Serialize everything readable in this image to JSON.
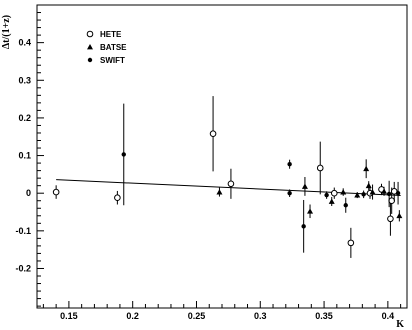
{
  "chart_data": {
    "type": "scatter",
    "title": "",
    "xlabel": "K",
    "ylabel": "Δt/(1+z)",
    "xlim": [
      0.125,
      0.415
    ],
    "ylim": [
      -0.305,
      0.5
    ],
    "xticks": [
      0.15,
      0.2,
      0.25,
      0.3,
      0.35,
      0.4
    ],
    "xtick_labels": [
      "0.15",
      "0.2",
      "0.25",
      "0.3",
      "0.35",
      "0.4"
    ],
    "yticks": [
      -0.2,
      -0.1,
      0,
      0.1,
      0.2,
      0.3,
      0.4
    ],
    "ytick_labels": [
      "-0.2",
      "-0.1",
      "0",
      "0.1",
      "0.2",
      "0.3",
      "0.4"
    ],
    "grid": false,
    "legend_position": "top-left",
    "series": [
      {
        "name": "HETE",
        "marker": "open-circle",
        "points": [
          {
            "x": 0.14,
            "y": 0.003,
            "err": 0.018
          },
          {
            "x": 0.188,
            "y": -0.012,
            "err": 0.018
          },
          {
            "x": 0.263,
            "y": 0.158,
            "err": 0.1
          },
          {
            "x": 0.277,
            "y": 0.025,
            "err": 0.04
          },
          {
            "x": 0.347,
            "y": 0.067,
            "err": 0.07
          },
          {
            "x": 0.358,
            "y": 0.0,
            "err": 0.015
          },
          {
            "x": 0.371,
            "y": -0.132,
            "err": 0.04
          },
          {
            "x": 0.386,
            "y": 0.0,
            "err": 0.015
          },
          {
            "x": 0.395,
            "y": 0.01,
            "err": 0.015
          },
          {
            "x": 0.402,
            "y": -0.068,
            "err": 0.045
          },
          {
            "x": 0.403,
            "y": -0.02,
            "err": 0.035
          },
          {
            "x": 0.405,
            "y": 0.005,
            "err": 0.025
          }
        ]
      },
      {
        "name": "BATSE",
        "marker": "filled-triangle",
        "points": [
          {
            "x": 0.268,
            "y": 0.003,
            "err": 0.012
          },
          {
            "x": 0.335,
            "y": 0.018,
            "err": 0.025
          },
          {
            "x": 0.339,
            "y": -0.048,
            "err": 0.018
          },
          {
            "x": 0.356,
            "y": -0.022,
            "err": 0.012
          },
          {
            "x": 0.365,
            "y": 0.003,
            "err": 0.01
          },
          {
            "x": 0.376,
            "y": -0.005,
            "err": 0.008
          },
          {
            "x": 0.383,
            "y": 0.065,
            "err": 0.025
          },
          {
            "x": 0.385,
            "y": 0.02,
            "err": 0.012
          },
          {
            "x": 0.388,
            "y": 0.003,
            "err": 0.02
          },
          {
            "x": 0.397,
            "y": 0.005,
            "err": 0.012
          },
          {
            "x": 0.409,
            "y": -0.06,
            "err": 0.015
          }
        ]
      },
      {
        "name": "SWIFT",
        "marker": "filled-circle",
        "points": [
          {
            "x": 0.193,
            "y": 0.103,
            "err": 0.135
          },
          {
            "x": 0.323,
            "y": 0.077,
            "err": 0.012
          },
          {
            "x": 0.323,
            "y": 0.0,
            "err": 0.01
          },
          {
            "x": 0.334,
            "y": -0.088,
            "err": 0.07
          },
          {
            "x": 0.352,
            "y": -0.005,
            "err": 0.01
          },
          {
            "x": 0.367,
            "y": -0.032,
            "err": 0.02
          },
          {
            "x": 0.381,
            "y": -0.003,
            "err": 0.01
          },
          {
            "x": 0.401,
            "y": -0.002,
            "err": 0.035
          },
          {
            "x": 0.408,
            "y": 0.0,
            "err": 0.03
          }
        ]
      }
    ],
    "fit_line": {
      "x": [
        0.14,
        0.41
      ],
      "y": [
        0.036,
        -0.006
      ]
    }
  }
}
